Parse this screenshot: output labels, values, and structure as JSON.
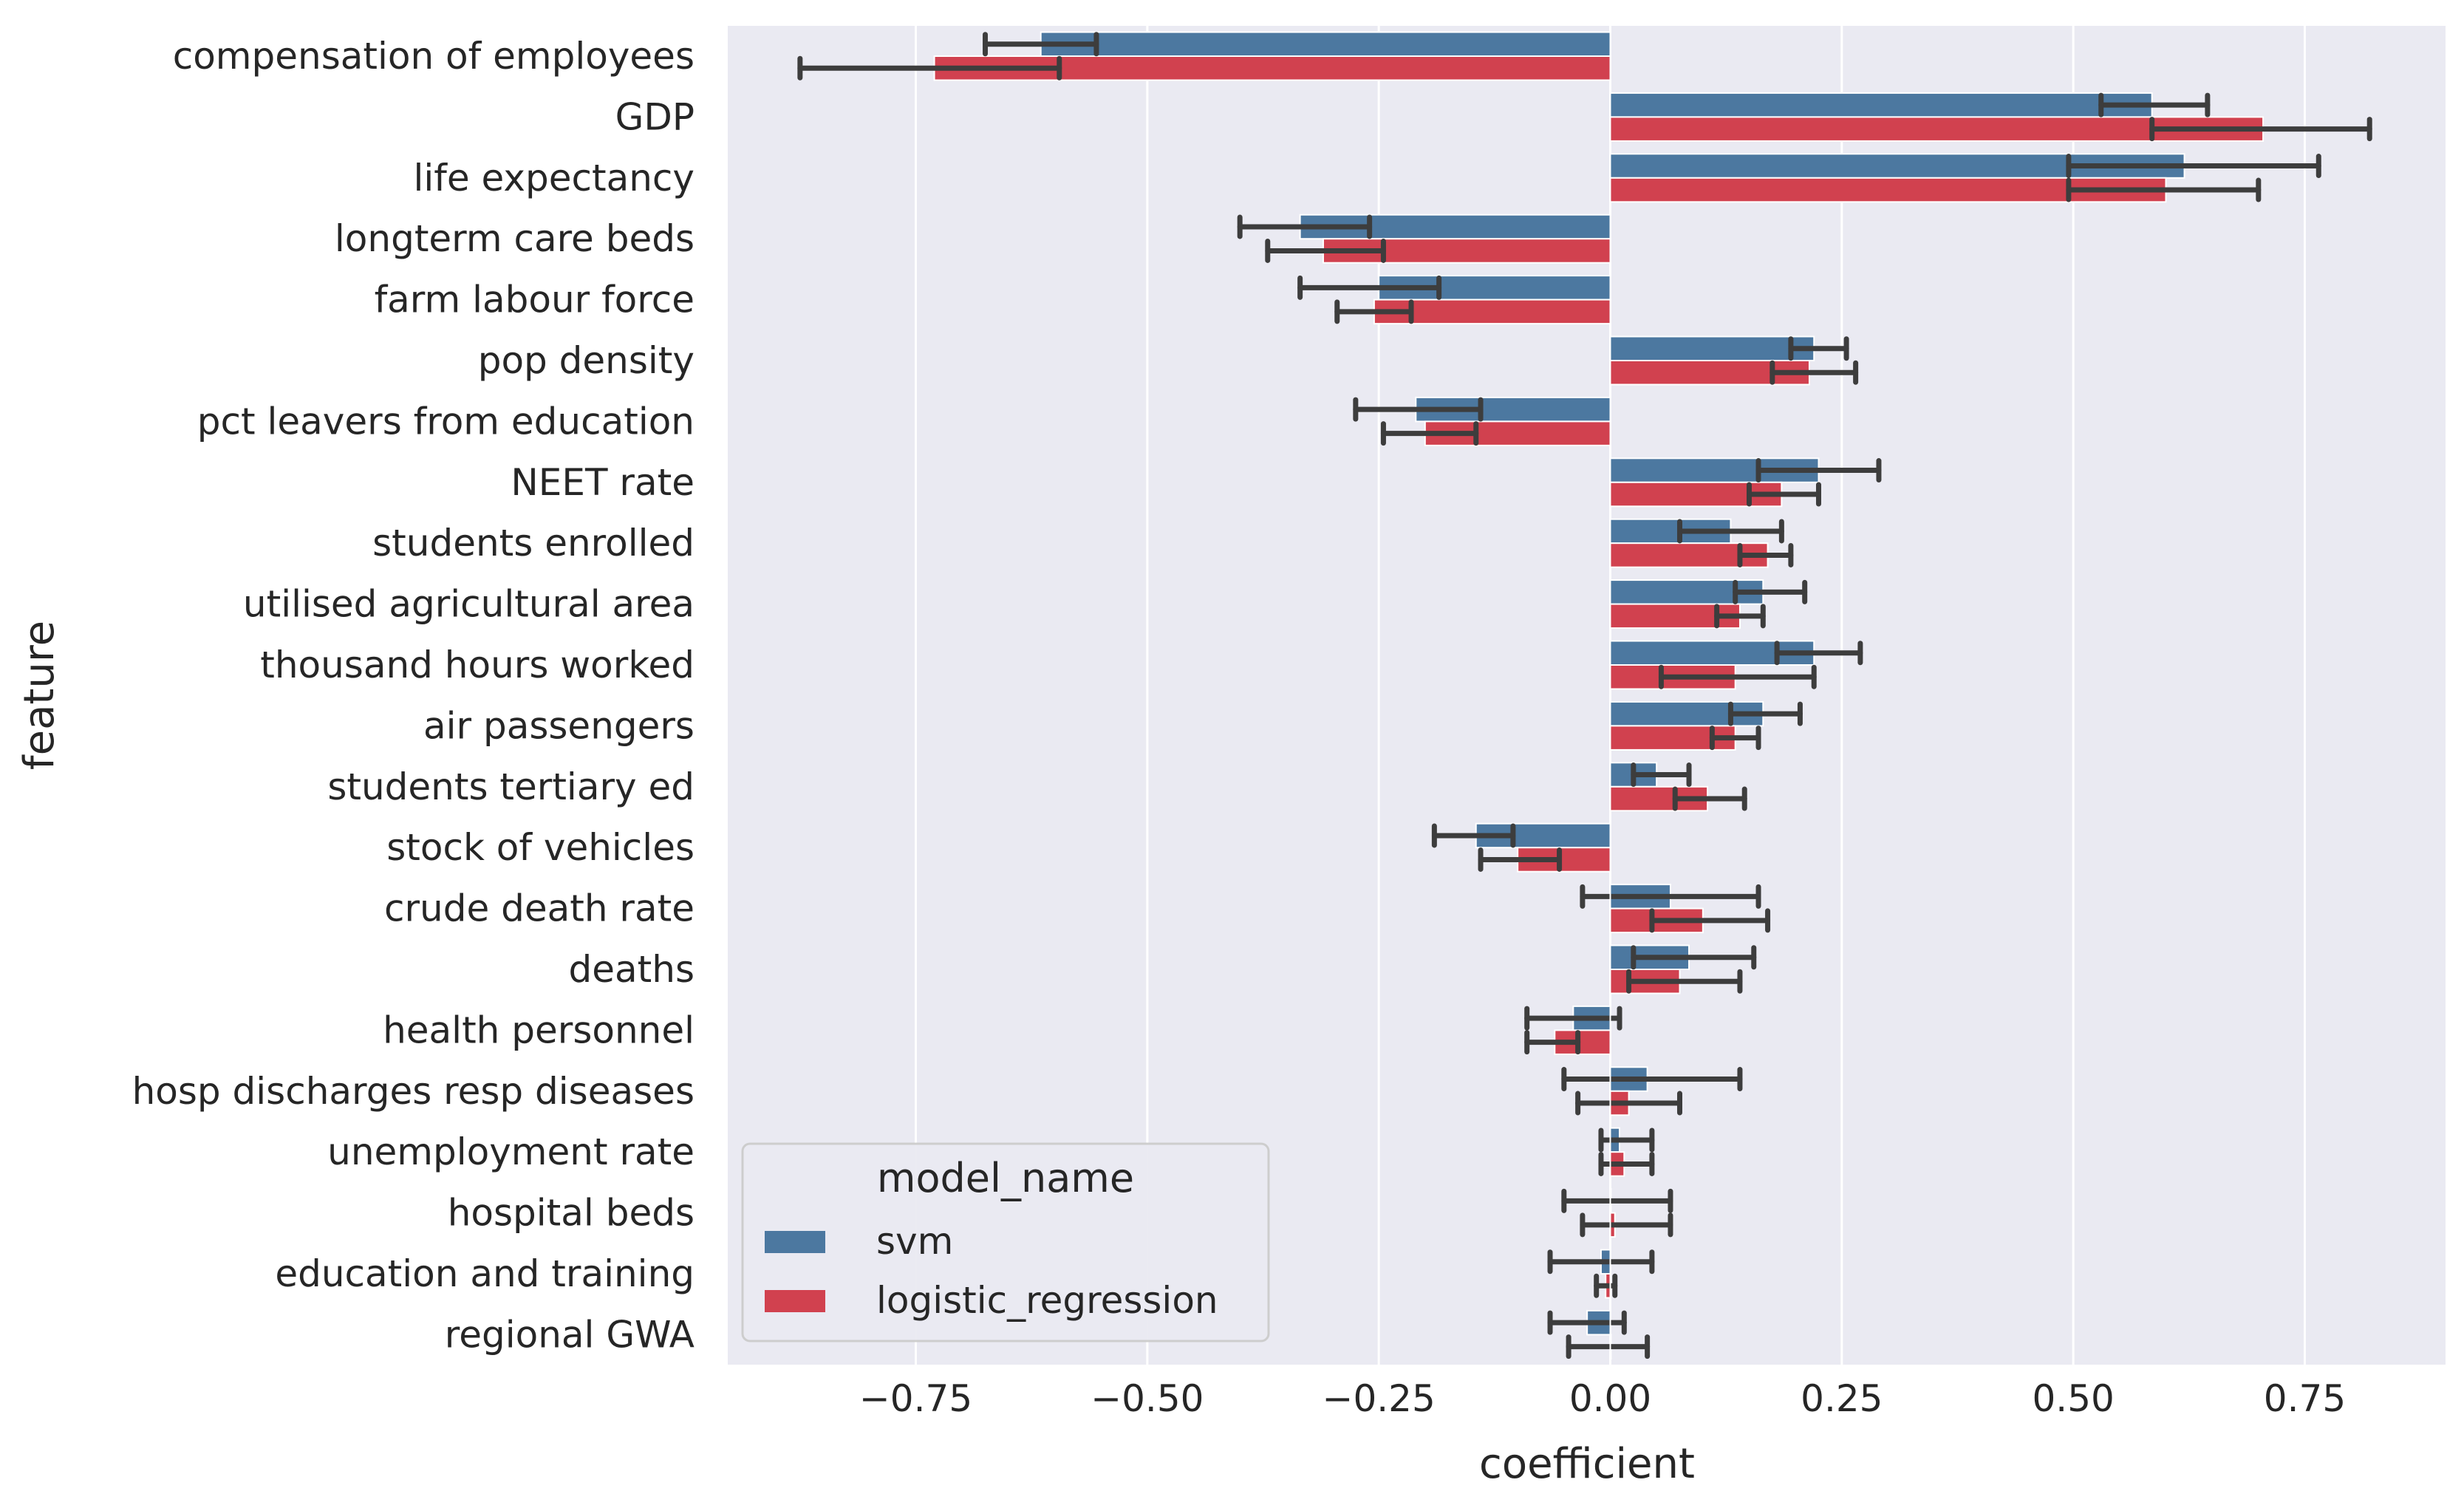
{
  "chart_data": {
    "type": "bar",
    "orientation": "horizontal",
    "xlabel": "coefficient",
    "ylabel": "feature",
    "xlim": [
      -0.96,
      0.9
    ],
    "xticks": [
      -0.75,
      -0.5,
      -0.25,
      0.0,
      0.25,
      0.5,
      0.75
    ],
    "xtick_labels": [
      "−0.75",
      "−0.50",
      "−0.25",
      "0.00",
      "0.25",
      "0.50",
      "0.75"
    ],
    "grid": true,
    "legend": {
      "title": "model_name",
      "placement": "lower-left"
    },
    "categories": [
      "compensation of employees",
      "GDP",
      "life expectancy",
      "longterm care beds",
      "farm labour force",
      "pop density",
      "pct leavers from education",
      "NEET rate",
      "students enrolled",
      "utilised agricultural area",
      "thousand hours worked",
      "air passengers",
      "students tertiary ed",
      "stock of vehicles",
      "crude death rate",
      "deaths",
      "health personnel",
      "hosp discharges resp diseases",
      "unemployment rate",
      "hospital beds",
      "education and training",
      "regional GWA"
    ],
    "series": [
      {
        "name": "svm",
        "color": "#4c78a0",
        "values": [
          -0.615,
          0.585,
          0.62,
          -0.335,
          -0.25,
          0.22,
          -0.21,
          0.225,
          0.13,
          0.165,
          0.22,
          0.165,
          0.05,
          -0.145,
          0.065,
          0.085,
          -0.04,
          0.04,
          0.01,
          0.0,
          -0.01,
          -0.025
        ],
        "err_low": [
          -0.675,
          0.53,
          0.495,
          -0.4,
          -0.335,
          0.195,
          -0.275,
          0.16,
          0.075,
          0.135,
          0.18,
          0.13,
          0.025,
          -0.19,
          -0.03,
          0.025,
          -0.09,
          -0.05,
          -0.01,
          -0.05,
          -0.065,
          -0.065
        ],
        "err_high": [
          -0.555,
          0.645,
          0.765,
          -0.26,
          -0.185,
          0.255,
          -0.14,
          0.29,
          0.185,
          0.21,
          0.27,
          0.205,
          0.085,
          -0.105,
          0.16,
          0.155,
          0.01,
          0.14,
          0.045,
          0.065,
          0.045,
          0.015
        ]
      },
      {
        "name": "logistic_regression",
        "color": "#d1414f",
        "values": [
          -0.73,
          0.705,
          0.6,
          -0.31,
          -0.255,
          0.215,
          -0.2,
          0.185,
          0.17,
          0.14,
          0.135,
          0.135,
          0.105,
          -0.1,
          0.1,
          0.075,
          -0.06,
          0.02,
          0.015,
          0.005,
          -0.005,
          0.0
        ],
        "err_low": [
          -0.875,
          0.585,
          0.495,
          -0.37,
          -0.295,
          0.175,
          -0.245,
          0.15,
          0.14,
          0.115,
          0.055,
          0.11,
          0.07,
          -0.14,
          0.045,
          0.02,
          -0.09,
          -0.035,
          -0.01,
          -0.03,
          -0.015,
          -0.045
        ],
        "err_high": [
          -0.595,
          0.82,
          0.7,
          -0.245,
          -0.215,
          0.265,
          -0.145,
          0.225,
          0.195,
          0.165,
          0.22,
          0.16,
          0.145,
          -0.055,
          0.17,
          0.14,
          -0.035,
          0.075,
          0.045,
          0.065,
          0.005,
          0.04
        ]
      }
    ]
  }
}
